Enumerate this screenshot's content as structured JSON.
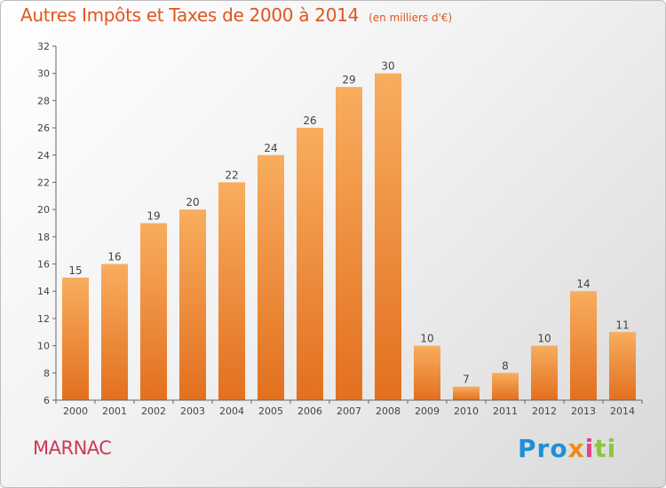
{
  "title": {
    "main": "Autres Impôts et Taxes de 2000 à 2014",
    "unit": "(en milliers d'€)"
  },
  "town": "MARNAC",
  "logo": {
    "parts": [
      "Pro",
      "x",
      "i",
      "ti"
    ]
  },
  "colors": {
    "bar_light": "#f7a95a",
    "bar_dark": "#e8782a",
    "title": "#e0561f",
    "town": "#c83a5a",
    "axis": "#555555"
  },
  "chart_data": {
    "type": "bar",
    "title": "Autres Impôts et Taxes de 2000 à 2014 (en milliers d'€)",
    "categories": [
      "2000",
      "2001",
      "2002",
      "2003",
      "2004",
      "2005",
      "2006",
      "2007",
      "2008",
      "2009",
      "2010",
      "2011",
      "2012",
      "2013",
      "2014"
    ],
    "values": [
      15,
      16,
      19,
      20,
      22,
      24,
      26,
      29,
      30,
      10,
      7,
      8,
      10,
      14,
      11
    ],
    "yticks": [
      6,
      8,
      10,
      12,
      14,
      16,
      18,
      20,
      22,
      24,
      26,
      28,
      30,
      32
    ],
    "ylim": [
      6,
      32
    ],
    "grid": false,
    "data_labels": true
  }
}
